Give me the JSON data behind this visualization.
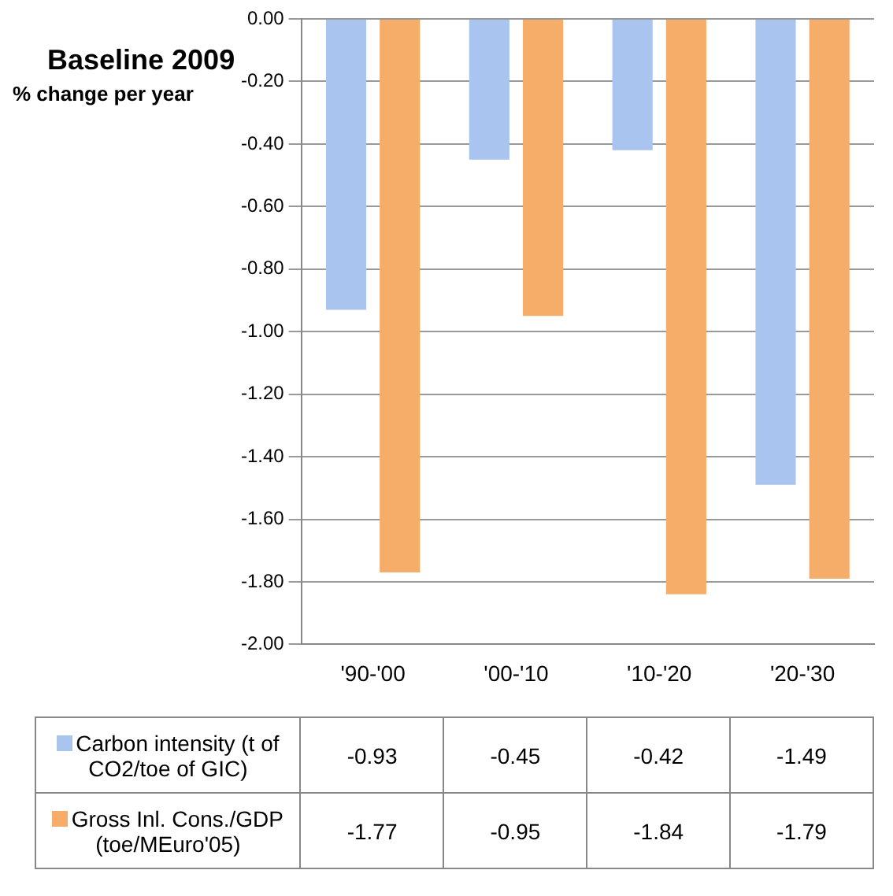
{
  "chart_data": {
    "type": "bar",
    "title": "Baseline 2009",
    "subtitle": "% change per year",
    "categories": [
      "'90-'00",
      "'00-'10",
      "'10-'20",
      "'20-'30"
    ],
    "series": [
      {
        "name": "Carbon intensity (t of CO2/toe of GIC)",
        "color": "#a9c4ee",
        "values": [
          -0.93,
          -0.45,
          -0.42,
          -1.49
        ]
      },
      {
        "name": "Gross Inl. Cons./GDP (toe/MEuro'05)",
        "color": "#f7ad6a",
        "values": [
          -1.77,
          -0.95,
          -1.84,
          -1.79
        ]
      }
    ],
    "ylim": [
      -2,
      0
    ],
    "yticks": [
      {
        "value": 0,
        "label": "0.00"
      },
      {
        "value": -0.2,
        "label": "-0.20"
      },
      {
        "value": -0.4,
        "label": "-0.40"
      },
      {
        "value": -0.6,
        "label": "-0.60"
      },
      {
        "value": -0.8,
        "label": "-0.80"
      },
      {
        "value": -1,
        "label": "-1.00"
      },
      {
        "value": -1.2,
        "label": "-1.20"
      },
      {
        "value": -1.4,
        "label": "-1.40"
      },
      {
        "value": -1.6,
        "label": "-1.60"
      },
      {
        "value": -1.8,
        "label": "-1.80"
      },
      {
        "value": -2,
        "label": "-2.00"
      }
    ],
    "grid": "y",
    "legend": "bottom",
    "data_labels": true
  }
}
